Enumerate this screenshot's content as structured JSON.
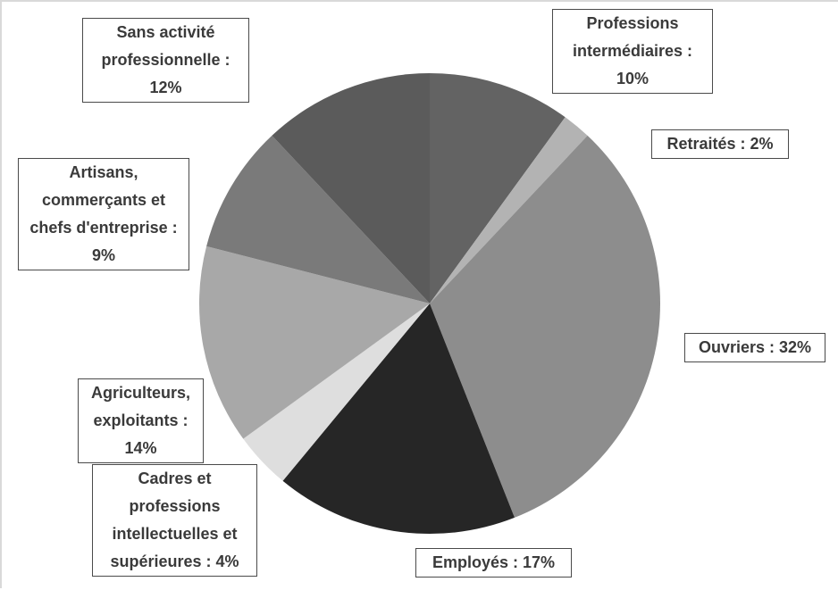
{
  "chart_data": {
    "type": "pie",
    "values": [
      10,
      2,
      32,
      17,
      4,
      14,
      9,
      12
    ],
    "value_labels": [
      "Professions intermédiaires : 10%",
      "Retraités : 2%",
      "Ouvriers : 32%",
      "Employés : 17%",
      "Cadres et professions intellectuelles et supérieures : 4%",
      "Agriculteurs, exploitants : 14%",
      "Artisans, commerçants et chefs d'entreprise : 9%",
      "Sans activité professionnelle : 12%"
    ],
    "colors": [
      "#636363",
      "#b3b3b3",
      "#8d8d8d",
      "#262626",
      "#dedede",
      "#a8a8a8",
      "#7a7a7a",
      "#5b5b5b"
    ]
  }
}
